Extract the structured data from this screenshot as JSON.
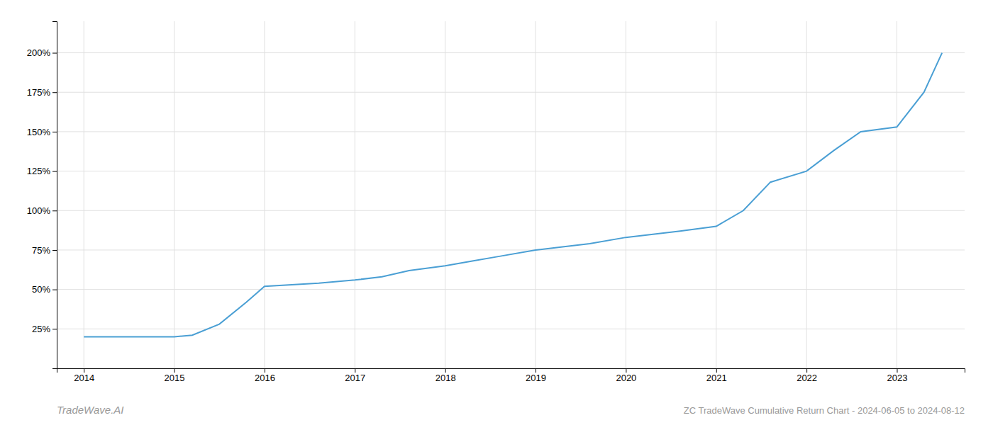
{
  "chart_data": {
    "type": "line",
    "title": "ZC TradeWave Cumulative Return Chart - 2024-06-05 to 2024-08-12",
    "annotations": [
      "TradeWave.AI"
    ],
    "color": "#4a9fd4",
    "x": [
      2014.0,
      2014.3,
      2014.6,
      2015.0,
      2015.2,
      2015.5,
      2015.8,
      2016.0,
      2016.3,
      2016.6,
      2017.0,
      2017.3,
      2017.6,
      2018.0,
      2018.3,
      2018.6,
      2019.0,
      2019.3,
      2019.6,
      2020.0,
      2020.3,
      2020.6,
      2021.0,
      2021.3,
      2021.6,
      2022.0,
      2022.3,
      2022.6,
      2023.0,
      2023.3,
      2023.5
    ],
    "values": [
      20,
      20,
      20,
      20,
      21,
      28,
      42,
      52,
      53,
      54,
      56,
      58,
      62,
      65,
      68,
      71,
      75,
      77,
      79,
      83,
      85,
      87,
      90,
      100,
      118,
      125,
      138,
      150,
      153,
      175,
      200
    ],
    "xlim": [
      2013.7,
      2023.75
    ],
    "ylim": [
      0,
      220
    ],
    "xticks": [
      2014,
      2015,
      2016,
      2017,
      2018,
      2019,
      2020,
      2021,
      2022,
      2023
    ],
    "yticks": [
      {
        "value": 25,
        "label": "25%"
      },
      {
        "value": 50,
        "label": "50%"
      },
      {
        "value": 75,
        "label": "75%"
      },
      {
        "value": 100,
        "label": "100%"
      },
      {
        "value": 125,
        "label": "125%"
      },
      {
        "value": 150,
        "label": "150%"
      },
      {
        "value": 175,
        "label": "175%"
      },
      {
        "value": 200,
        "label": "200%"
      }
    ],
    "grid": true
  }
}
